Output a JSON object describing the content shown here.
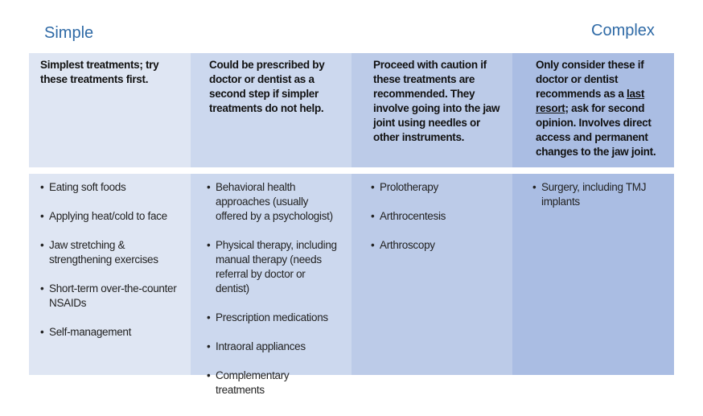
{
  "labels": {
    "simple": "Simple",
    "complex": "Complex"
  },
  "columns": [
    {
      "header": [
        {
          "text": "Simplest treatments; try these treatments first."
        }
      ],
      "items": [
        "Eating soft foods",
        "Applying heat/cold to face",
        "Jaw stretching & strengthening exercises",
        "Short-term over-the-counter NSAIDs",
        "Self-management"
      ]
    },
    {
      "header": [
        {
          "text": "Could be prescribed by doctor or dentist as a second step if simpler treatments do not help."
        }
      ],
      "items": [
        "Behavioral health approaches (usually offered by a psychologist)",
        "Physical therapy, including manual therapy (needs referral by doctor or dentist)",
        "Prescription medications",
        "Intraoral appliances",
        "Complementary treatments"
      ]
    },
    {
      "header": [
        {
          "text": "Proceed with caution if these treatments are recommended. They involve going into the jaw joint using needles or other instruments."
        }
      ],
      "items": [
        "Prolotherapy",
        "Arthrocentesis",
        "Arthroscopy"
      ]
    },
    {
      "header": [
        {
          "text": "Only consider these if doctor or dentist recommends as a "
        },
        {
          "text": "last resort",
          "underline": true
        },
        {
          "text": "; ask for second opinion. Involves direct access and permanent changes to the jaw joint."
        }
      ],
      "items": [
        "Surgery, including TMJ implants"
      ]
    }
  ]
}
